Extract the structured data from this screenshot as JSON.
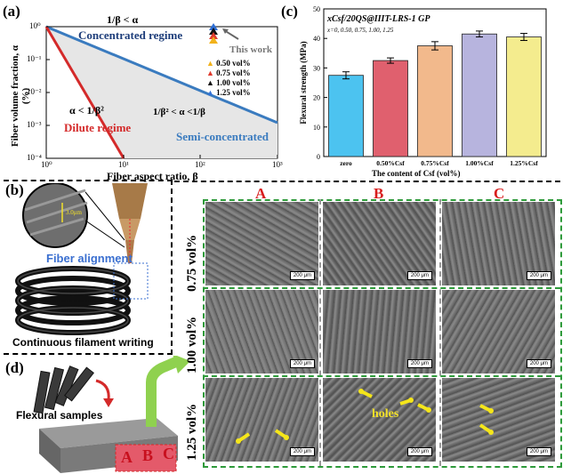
{
  "panel_a": {
    "label": "(a)",
    "xlabel": "Fiber aspect ratio, β",
    "ylabel": "Fiber volume fraction, α (%)",
    "xticks": [
      "10⁰",
      "10¹",
      "10²",
      "10³"
    ],
    "yticks": [
      "10⁰",
      "10⁻¹",
      "10⁻²",
      "10⁻³",
      "10⁻⁴"
    ],
    "regime_concentrated": "Concentrated regime",
    "regime_dilute": "Dilute regime",
    "regime_semi": "Semi-concentrated",
    "cond_top": "1/β < α",
    "cond_low": "α < 1/β²",
    "cond_mid": "1/β² < α <1/β",
    "this_work": "This work",
    "legend": [
      {
        "label": "0.50 vol%",
        "color": "#f2b21b"
      },
      {
        "label": "0.75 vol%",
        "color": "#e03b2e"
      },
      {
        "label": "1.00 vol%",
        "color": "#111111"
      },
      {
        "label": "1.25 vol%",
        "color": "#2f6fd6"
      }
    ]
  },
  "panel_b": {
    "label": "(b)",
    "width_label": "3.0μm",
    "fiber_alignment": "Fiber alignment",
    "caption": "Continuous filament writing"
  },
  "panel_c": {
    "label": "(c)",
    "title": "xCsf/20QS@IIIT-LRS-1 GP",
    "subtitle": "x=0, 0.50, 0.75, 1.00, 1.25",
    "ylabel": "Flexural strength (MPa)",
    "xlabel": "The content of Csf (vol%)",
    "ylim": [
      0,
      50
    ],
    "yticks": [
      "0",
      "10",
      "20",
      "30",
      "40",
      "50"
    ]
  },
  "chart_data": {
    "type": "bar",
    "categories": [
      "zero",
      "0.50%Csf",
      "0.75%Csf",
      "1.00%Csf",
      "1.25%Csf"
    ],
    "values": [
      27.5,
      32.5,
      37.5,
      41.5,
      40.5
    ],
    "errors": [
      1.2,
      0.9,
      1.4,
      1.0,
      1.2
    ],
    "colors": [
      "#4cc3f0",
      "#e0606e",
      "#f2b98c",
      "#b7b4de",
      "#f4ec8e"
    ],
    "ylim": [
      0,
      50
    ],
    "ylabel": "Flexural strength (MPa)",
    "xlabel": "The content of Csf (vol%)"
  },
  "panel_d": {
    "label": "(d)",
    "flexural_samples": "Flexural samples",
    "faces": [
      "A",
      "B",
      "C"
    ]
  },
  "sem": {
    "columns": [
      "A",
      "B",
      "C"
    ],
    "rows": [
      "0.75 vol%",
      "1.00 vol%",
      "1.25 vol%"
    ],
    "scale_label": "200 μm",
    "holes_label": "holes"
  }
}
